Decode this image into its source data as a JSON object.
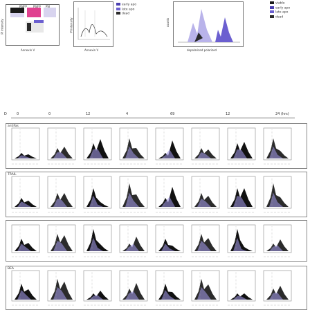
{
  "top": {
    "left_block": {
      "col_labels": [
        "PSIFP",
        "PSIFP",
        "PSI"
      ],
      "ylabel": "PI intensity",
      "xlabel": "Annexin V"
    },
    "middle_block": {
      "ylabel": "PI intensity",
      "xlabel": "Annexin V"
    },
    "legend_a": {
      "title": "",
      "items": [
        {
          "label": "early apo",
          "color": "#4a3fb0"
        },
        {
          "label": "late apo",
          "color": "#6b5fd0"
        },
        {
          "label": "dead",
          "color": "#2a2a2a"
        }
      ]
    },
    "right_block": {
      "ylabel": "counts",
      "xlabel": "depolarized   polarized"
    },
    "legend_b": {
      "items": [
        {
          "label": "viable",
          "color": "#1a1a1a"
        },
        {
          "label": "early apo",
          "color": "#4a3fb0"
        },
        {
          "label": "late apo",
          "color": "#6b5fd0"
        },
        {
          "label": "dead",
          "color": "#2a2a2a"
        }
      ]
    }
  },
  "timeline": {
    "ticks": [
      "0",
      "0",
      "12",
      "4",
      "69",
      "12",
      "24 (hrs)"
    ],
    "row_start_label": "D"
  },
  "rows": [
    {
      "label": "antiFas"
    },
    {
      "label": "TRAIL"
    },
    {
      "label": ""
    },
    {
      "label": "BEA"
    }
  ],
  "icons": {
    "histogram": "histogram-icon",
    "dot": "scatter-plot-icon"
  }
}
